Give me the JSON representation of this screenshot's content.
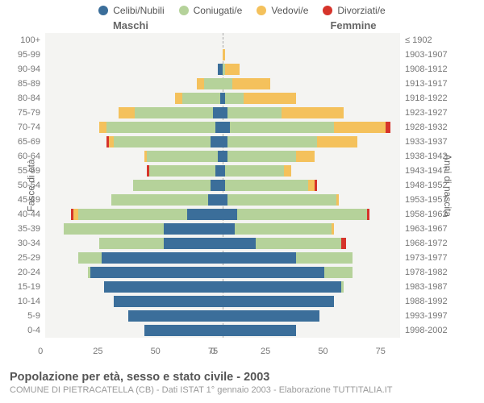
{
  "legend": {
    "items": [
      {
        "label": "Celibi/Nubili",
        "color": "#3b6e9a"
      },
      {
        "label": "Coniugati/e",
        "color": "#b5d29a"
      },
      {
        "label": "Vedovi/e",
        "color": "#f4c15c"
      },
      {
        "label": "Divorziati/e",
        "color": "#d6342b"
      }
    ]
  },
  "gender": {
    "male": "Maschi",
    "female": "Femmine"
  },
  "axis": {
    "left_label": "Fasce di età",
    "right_label": "Anni di nascita",
    "xmax": 75,
    "xticks": [
      "75",
      "50",
      "25",
      "0"
    ],
    "xticks_right": [
      "0",
      "25",
      "50",
      "75"
    ]
  },
  "colors": {
    "bg": "#f4f4f2",
    "grid": "#aaaaaa"
  },
  "title": "Popolazione per età, sesso e stato civile - 2003",
  "subtitle": "COMUNE DI PIETRACATELLA (CB) - Dati ISTAT 1° gennaio 2003 - Elaborazione TUTTITALIA.IT",
  "rows": [
    {
      "age": "100+",
      "birth": "≤ 1902",
      "m": [
        0,
        0,
        0,
        0
      ],
      "f": [
        0,
        0,
        0,
        0
      ]
    },
    {
      "age": "95-99",
      "birth": "1903-1907",
      "m": [
        0,
        0,
        0,
        0
      ],
      "f": [
        0,
        0,
        1,
        0
      ]
    },
    {
      "age": "90-94",
      "birth": "1908-1912",
      "m": [
        2,
        0,
        0,
        0
      ],
      "f": [
        0,
        1,
        6,
        0
      ]
    },
    {
      "age": "85-89",
      "birth": "1913-1917",
      "m": [
        0,
        8,
        3,
        0
      ],
      "f": [
        0,
        4,
        16,
        0
      ]
    },
    {
      "age": "80-84",
      "birth": "1918-1922",
      "m": [
        1,
        16,
        3,
        0
      ],
      "f": [
        1,
        8,
        22,
        0
      ]
    },
    {
      "age": "75-79",
      "birth": "1923-1927",
      "m": [
        4,
        33,
        7,
        0
      ],
      "f": [
        2,
        23,
        26,
        0
      ]
    },
    {
      "age": "70-74",
      "birth": "1928-1932",
      "m": [
        3,
        46,
        3,
        0
      ],
      "f": [
        3,
        44,
        22,
        2
      ]
    },
    {
      "age": "65-69",
      "birth": "1933-1937",
      "m": [
        5,
        41,
        2,
        1
      ],
      "f": [
        2,
        38,
        17,
        0
      ]
    },
    {
      "age": "60-64",
      "birth": "1938-1942",
      "m": [
        2,
        30,
        1,
        0
      ],
      "f": [
        2,
        29,
        8,
        0
      ]
    },
    {
      "age": "55-59",
      "birth": "1943-1947",
      "m": [
        3,
        28,
        0,
        1
      ],
      "f": [
        1,
        25,
        3,
        0
      ]
    },
    {
      "age": "50-54",
      "birth": "1948-1952",
      "m": [
        5,
        33,
        0,
        0
      ],
      "f": [
        1,
        35,
        3,
        1
      ]
    },
    {
      "age": "45-49",
      "birth": "1953-1957",
      "m": [
        6,
        41,
        0,
        0
      ],
      "f": [
        2,
        46,
        1,
        0
      ]
    },
    {
      "age": "40-44",
      "birth": "1958-1962",
      "m": [
        15,
        46,
        2,
        1
      ],
      "f": [
        6,
        55,
        0,
        1
      ]
    },
    {
      "age": "35-39",
      "birth": "1963-1967",
      "m": [
        25,
        42,
        0,
        0
      ],
      "f": [
        5,
        41,
        1,
        0
      ]
    },
    {
      "age": "30-34",
      "birth": "1968-1972",
      "m": [
        25,
        27,
        0,
        0
      ],
      "f": [
        14,
        36,
        0,
        2
      ]
    },
    {
      "age": "25-29",
      "birth": "1973-1977",
      "m": [
        51,
        10,
        0,
        0
      ],
      "f": [
        31,
        24,
        0,
        0
      ]
    },
    {
      "age": "20-24",
      "birth": "1978-1982",
      "m": [
        56,
        1,
        0,
        0
      ],
      "f": [
        43,
        12,
        0,
        0
      ]
    },
    {
      "age": "15-19",
      "birth": "1983-1987",
      "m": [
        50,
        0,
        0,
        0
      ],
      "f": [
        50,
        1,
        0,
        0
      ]
    },
    {
      "age": "10-14",
      "birth": "1988-1992",
      "m": [
        46,
        0,
        0,
        0
      ],
      "f": [
        47,
        0,
        0,
        0
      ]
    },
    {
      "age": "5-9",
      "birth": "1993-1997",
      "m": [
        40,
        0,
        0,
        0
      ],
      "f": [
        41,
        0,
        0,
        0
      ]
    },
    {
      "age": "0-4",
      "birth": "1998-2002",
      "m": [
        33,
        0,
        0,
        0
      ],
      "f": [
        31,
        0,
        0,
        0
      ]
    }
  ]
}
